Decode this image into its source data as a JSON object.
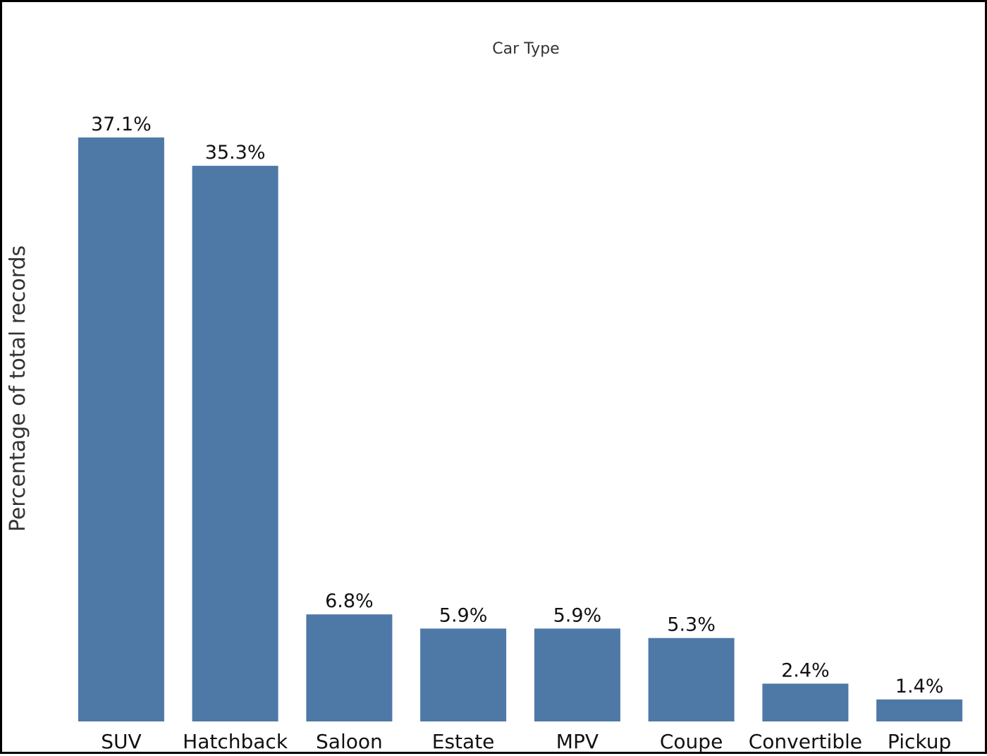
{
  "chart_data": {
    "type": "bar",
    "title": "Car Type",
    "xlabel": "",
    "ylabel": "Percentage of total records",
    "categories": [
      "SUV",
      "Hatchback",
      "Saloon",
      "Estate",
      "MPV",
      "Coupe",
      "Convertible",
      "Pickup"
    ],
    "values": [
      37.1,
      35.3,
      6.8,
      5.9,
      5.9,
      5.3,
      2.4,
      1.4
    ],
    "value_labels": [
      "37.1%",
      "35.3%",
      "6.8%",
      "5.9%",
      "5.9%",
      "5.3%",
      "2.4%",
      "1.4%"
    ],
    "ylim": [
      0,
      40
    ],
    "grid": false,
    "legend": "none",
    "bar_color": "#4E79A7"
  }
}
